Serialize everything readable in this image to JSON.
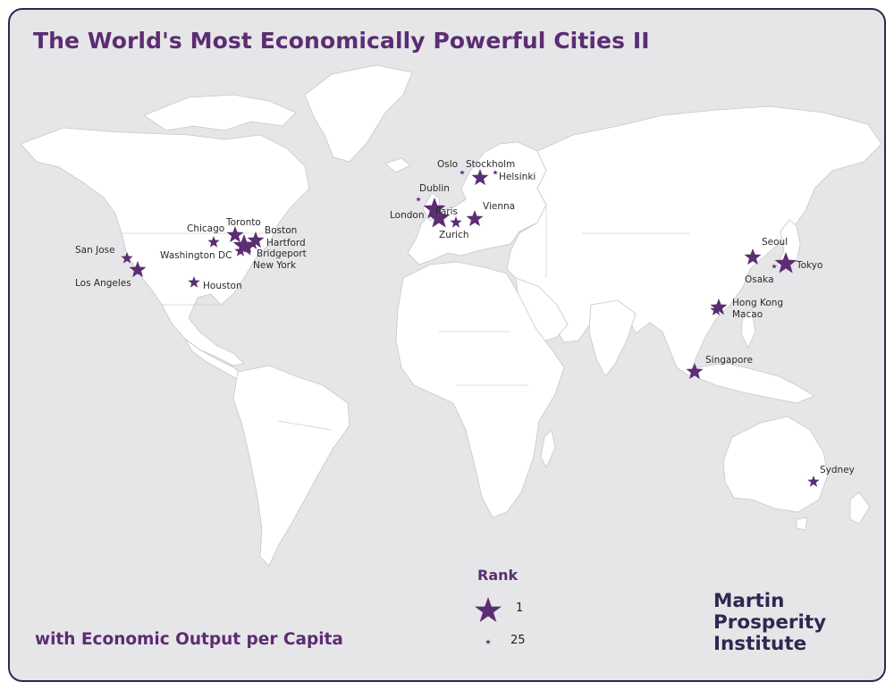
{
  "title": "The World's Most Economically Powerful Cities II",
  "subtitle": "with Economic Output per Capita",
  "brand": [
    "Martin",
    "Prosperity",
    "Institute"
  ],
  "legend": {
    "title": "Rank",
    "high": "1",
    "low": "25"
  },
  "colors": {
    "star": "#5b2d73",
    "ocean": "#e6e6e8",
    "land": "#ffffff",
    "frame": "#2c2950"
  },
  "cities": [
    {
      "name": "San Jose",
      "size": "small"
    },
    {
      "name": "Los Angeles",
      "size": "medium"
    },
    {
      "name": "Chicago",
      "size": "small"
    },
    {
      "name": "Toronto",
      "size": "medium"
    },
    {
      "name": "Boston",
      "size": "medium"
    },
    {
      "name": "Hartford",
      "size": "small"
    },
    {
      "name": "Washington DC",
      "size": "small"
    },
    {
      "name": "Bridgeport",
      "size": "small"
    },
    {
      "name": "New York",
      "size": "large"
    },
    {
      "name": "Houston",
      "size": "small"
    },
    {
      "name": "Oslo",
      "size": "tiny"
    },
    {
      "name": "Stockholm",
      "size": "medium"
    },
    {
      "name": "Helsinki",
      "size": "tiny"
    },
    {
      "name": "Dublin",
      "size": "tiny"
    },
    {
      "name": "London",
      "size": "large"
    },
    {
      "name": "Paris",
      "size": "large"
    },
    {
      "name": "Zurich",
      "size": "small"
    },
    {
      "name": "Vienna",
      "size": "medium"
    },
    {
      "name": "Seoul",
      "size": "medium"
    },
    {
      "name": "Tokyo",
      "size": "large"
    },
    {
      "name": "Osaka",
      "size": "tiny"
    },
    {
      "name": "Hong Kong",
      "size": "medium"
    },
    {
      "name": "Macao",
      "size": "small"
    },
    {
      "name": "Singapore",
      "size": "medium"
    },
    {
      "name": "Sydney",
      "size": "small"
    }
  ]
}
